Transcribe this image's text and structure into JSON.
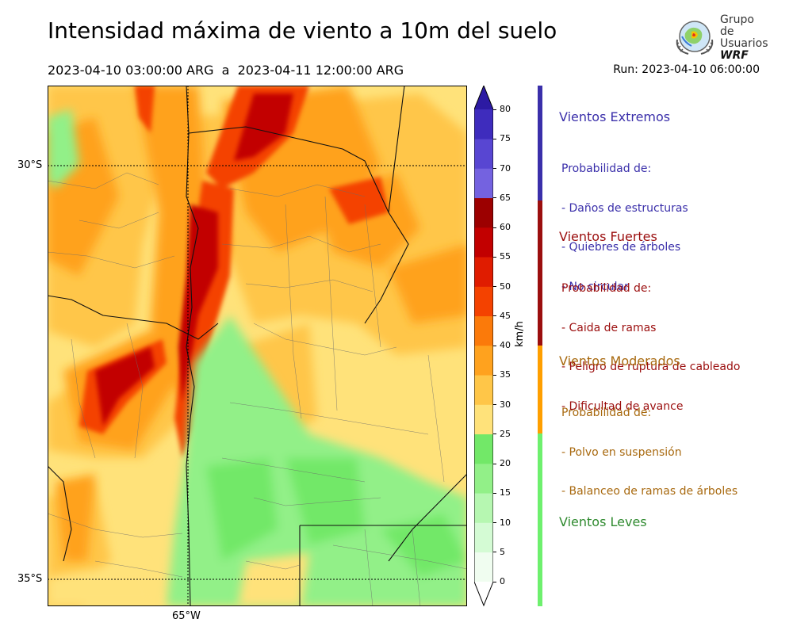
{
  "header": {
    "title": "Intensidad máxima de viento a 10m del suelo",
    "period": "2023-04-10 03:00:00 ARG  a  2023-04-11 12:00:00 ARG",
    "run": "Run: 2023-04-10 06:00:00"
  },
  "logo": {
    "line1": "Grupo de",
    "line2": "Usuarios",
    "line3": "WRF",
    "icon": "wrf-globe-logo"
  },
  "map": {
    "lat_labels": [
      "30°S",
      "35°S"
    ],
    "lon_labels": [
      "65°W"
    ]
  },
  "colorbar": {
    "unit": "km/h",
    "ticks": [
      "0",
      "5",
      "10",
      "15",
      "20",
      "25",
      "30",
      "35",
      "40",
      "45",
      "50",
      "55",
      "60",
      "65",
      "70",
      "75",
      "80"
    ],
    "colors": [
      "#f0fdf0",
      "#d4fbd4",
      "#b6f7b1",
      "#92f088",
      "#72e868",
      "#ffe27a",
      "#ffc648",
      "#ffa21e",
      "#fb7a0a",
      "#f44200",
      "#e01c00",
      "#c20000",
      "#9c0000",
      "#7462e0",
      "#5846d2",
      "#3e2cbd",
      "#2c1aa3"
    ]
  },
  "categories": [
    {
      "title": "Vientos Extremos",
      "color": "#3a2faa",
      "lines": [
        "Probabilidad de:",
        "- Daños de estructuras",
        "- Quiebres de árboles",
        "- No circular"
      ]
    },
    {
      "title": "Vientos Fuertes",
      "color": "#9b0e0e",
      "lines": [
        "Probabilidad de:",
        "- Caida de ramas",
        "- Peligro de ruptura de cableado",
        "- Dificultad de avance"
      ]
    },
    {
      "title": "Vientos Moderados",
      "color": "#a8690f",
      "lines": [
        "Probabilidad de:",
        "- Polvo en suspensión",
        "- Balanceo de ramas de árboles"
      ]
    },
    {
      "title": "Vientos Leves",
      "color": "#2f8a2f",
      "lines": []
    }
  ],
  "category_strip_colors": [
    "#3a2faa",
    "#9b0e0e",
    "#ff9f00",
    "#6ef06e"
  ]
}
